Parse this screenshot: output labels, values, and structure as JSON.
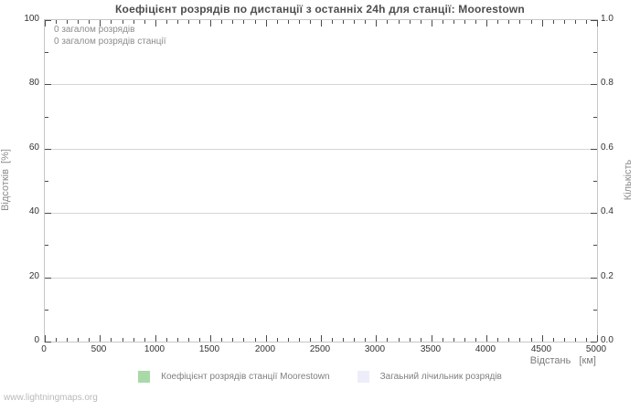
{
  "page": {
    "watermark": "www.lightningmaps.org"
  },
  "chart_data": {
    "type": "line",
    "title": "Коефіцієнт розрядів по дистанції з останніх 24h для станції: Moorestown",
    "annotations": [
      "0 загалом розрядів",
      "0 загалом розрядів станції"
    ],
    "grid": "horizontal-major-only",
    "legend_position": "bottom-center",
    "x_axis": {
      "label": "Відстань   [км]",
      "min": 0,
      "max": 5000,
      "major_ticks": [
        0,
        500,
        1000,
        1500,
        2000,
        2500,
        3000,
        3500,
        4000,
        4500,
        5000
      ],
      "minor_step": 100
    },
    "y_axis_left": {
      "label": "Відсотків  [%]",
      "min": 0,
      "max": 100,
      "major_ticks": [
        0,
        20,
        40,
        60,
        80,
        100
      ],
      "minor_step": 10
    },
    "y_axis_right": {
      "label": "Кількість",
      "min": 0.0,
      "max": 1.0,
      "major_tick_labels": [
        "0.0",
        "0.2",
        "0.4",
        "0.6",
        "0.8",
        "1.0"
      ],
      "minor_step": 0.1
    },
    "series": [
      {
        "name": "Коефіцієнт розрядів станції Moorestown",
        "color": "#a9d9a9",
        "points": []
      },
      {
        "name": "Загаьний лічильник розрядів",
        "color": "#ededfa",
        "points": []
      }
    ]
  }
}
